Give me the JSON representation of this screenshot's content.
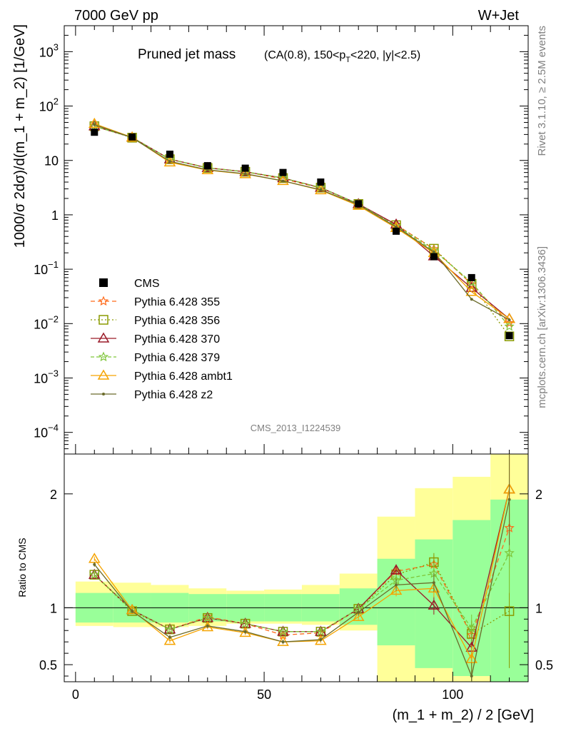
{
  "header": {
    "left": "7000 GeV pp",
    "right": "W+Jet"
  },
  "side_text": {
    "right_top": "Rivet 3.1.10, ≥ 2.5M events",
    "right_bottom": "mcplots.cern.ch [arXiv:1306.3436]"
  },
  "watermark": "CMS_2013_I1224539",
  "colors": {
    "CMS": "#000000",
    "p355": "#ff6a1a",
    "p356": "#8a9a00",
    "p370": "#9a1a28",
    "p379": "#7fc63a",
    "ambt1": "#f5a300",
    "z2": "#6b6b2a",
    "band_inner": "#99ff99",
    "band_outer": "#ffff99"
  },
  "chart_data": {
    "type": "line",
    "title": "Pruned jet mass",
    "subtitle": "(CA(0.8), 150<p_T<220, |y|<2.5)",
    "xlabel": "(m_1 + m_2) / 2 [GeV]",
    "ylabel": "1000/σ 2dσ)/d(m_1 + m_2) [1/GeV]",
    "ratio_ylabel": "Ratio to CMS",
    "xlim": [
      -3,
      120
    ],
    "ylim": [
      4e-05,
      3000
    ],
    "ratio_ylim": [
      0.35,
      2.35
    ],
    "yscale": "log",
    "x_ticks": [
      0,
      50,
      100
    ],
    "y_tick_labels": [
      "10^-4",
      "10^-3",
      "10^-2",
      "10^-1",
      "1",
      "10",
      "10^2",
      "10^3"
    ],
    "ratio_tick_labels": [
      "0.5",
      "1",
      "2"
    ],
    "bins": [
      [
        0,
        10
      ],
      [
        10,
        20
      ],
      [
        20,
        30
      ],
      [
        30,
        40
      ],
      [
        40,
        50
      ],
      [
        50,
        60
      ],
      [
        60,
        70
      ],
      [
        70,
        80
      ],
      [
        80,
        90
      ],
      [
        90,
        100
      ],
      [
        100,
        110
      ],
      [
        110,
        120
      ]
    ],
    "x": [
      5,
      15,
      25,
      35,
      45,
      55,
      65,
      75,
      85,
      95,
      105,
      115
    ],
    "data": {
      "name": "CMS",
      "values": [
        33,
        27,
        13,
        8,
        7.2,
        6,
        4,
        1.6,
        0.5,
        0.17,
        0.07,
        0.006
      ],
      "band_inner": [
        [
          0.87,
          1.13
        ],
        [
          0.87,
          1.13
        ],
        [
          0.87,
          1.13
        ],
        [
          0.88,
          1.12
        ],
        [
          0.88,
          1.12
        ],
        [
          0.88,
          1.12
        ],
        [
          0.88,
          1.12
        ],
        [
          0.85,
          1.17
        ],
        [
          0.67,
          1.43
        ],
        [
          0.47,
          1.6
        ],
        [
          0.4,
          1.77
        ],
        [
          0.35,
          1.95
        ]
      ],
      "band_outer": [
        [
          0.84,
          1.23
        ],
        [
          0.83,
          1.22
        ],
        [
          0.83,
          1.2
        ],
        [
          0.84,
          1.17
        ],
        [
          0.86,
          1.15
        ],
        [
          0.86,
          1.16
        ],
        [
          0.85,
          1.2
        ],
        [
          0.8,
          1.3
        ],
        [
          0.35,
          1.8
        ],
        [
          0.35,
          2.05
        ],
        [
          0.35,
          2.15
        ],
        [
          0.35,
          2.35
        ]
      ]
    },
    "series": [
      {
        "name": "Pythia 6.428 355",
        "key": "p355",
        "marker": "star",
        "dash": "6,4",
        "ratio": [
          1.29,
          0.98,
          0.81,
          0.92,
          0.86,
          0.76,
          0.78,
          0.99,
          1.32,
          1.38,
          0.76,
          1.7
        ],
        "ratio_err": [
          0.02,
          0.02,
          0.02,
          0.02,
          0.02,
          0.02,
          0.02,
          0.03,
          0.05,
          0.08,
          0.12,
          0.35
        ]
      },
      {
        "name": "Pythia 6.428 356",
        "key": "p356",
        "marker": "square",
        "dash": "2,3",
        "ratio": [
          1.29,
          0.97,
          0.81,
          0.91,
          0.86,
          0.79,
          0.79,
          0.99,
          1.29,
          1.4,
          0.77,
          0.97
        ],
        "ratio_err": [
          0.02,
          0.02,
          0.02,
          0.02,
          0.02,
          0.02,
          0.02,
          0.03,
          0.05,
          0.08,
          0.12,
          0.5
        ]
      },
      {
        "name": "Pythia 6.428 370",
        "key": "p370",
        "marker": "triangle",
        "dash": "",
        "ratio": [
          1.29,
          0.98,
          0.81,
          0.91,
          0.86,
          0.79,
          0.79,
          0.99,
          1.33,
          1.02,
          0.65,
          2.04
        ],
        "ratio_err": [
          0.02,
          0.02,
          0.02,
          0.02,
          0.02,
          0.02,
          0.02,
          0.03,
          0.05,
          0.08,
          0.12,
          0.4
        ]
      },
      {
        "name": "Pythia 6.428 379",
        "key": "p379",
        "marker": "star",
        "dash": "5,3",
        "ratio": [
          1.29,
          0.98,
          0.81,
          0.91,
          0.86,
          0.79,
          0.79,
          0.99,
          1.24,
          1.3,
          0.82,
          1.48
        ],
        "ratio_err": [
          0.02,
          0.02,
          0.02,
          0.02,
          0.02,
          0.02,
          0.02,
          0.03,
          0.05,
          0.08,
          0.12,
          0.35
        ]
      },
      {
        "name": "Pythia 6.428 ambt1",
        "key": "ambt1",
        "marker": "triangle",
        "dash": "",
        "ratio": [
          1.43,
          0.98,
          0.71,
          0.83,
          0.78,
          0.7,
          0.71,
          0.92,
          1.15,
          1.17,
          0.55,
          2.04
        ],
        "ratio_err": [
          0.02,
          0.02,
          0.02,
          0.02,
          0.02,
          0.02,
          0.02,
          0.03,
          0.05,
          0.08,
          0.12,
          0.4
        ]
      },
      {
        "name": "Pythia 6.428 z2",
        "key": "z2",
        "marker": "dot",
        "dash": "",
        "ratio": [
          1.38,
          0.97,
          0.74,
          0.84,
          0.79,
          0.7,
          0.72,
          0.96,
          1.2,
          1.22,
          0.4,
          1.95
        ],
        "ratio_err": [
          0.02,
          0.02,
          0.02,
          0.02,
          0.02,
          0.02,
          0.02,
          0.03,
          0.05,
          0.08,
          0.12,
          0.4
        ]
      }
    ]
  }
}
